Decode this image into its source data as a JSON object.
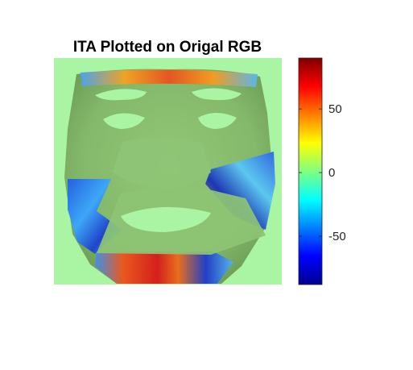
{
  "chart_data": {
    "type": "heatmap",
    "title": "ITA Plotted on Origal RGB",
    "colormap": "jet",
    "colorbar": {
      "clim": [
        -88,
        90
      ],
      "ticks": [
        50,
        0,
        -50
      ],
      "tick_labels": [
        "50",
        "0",
        "-50"
      ]
    },
    "background_color": "#a9f5a3",
    "overlay_color": "#89c06f"
  }
}
